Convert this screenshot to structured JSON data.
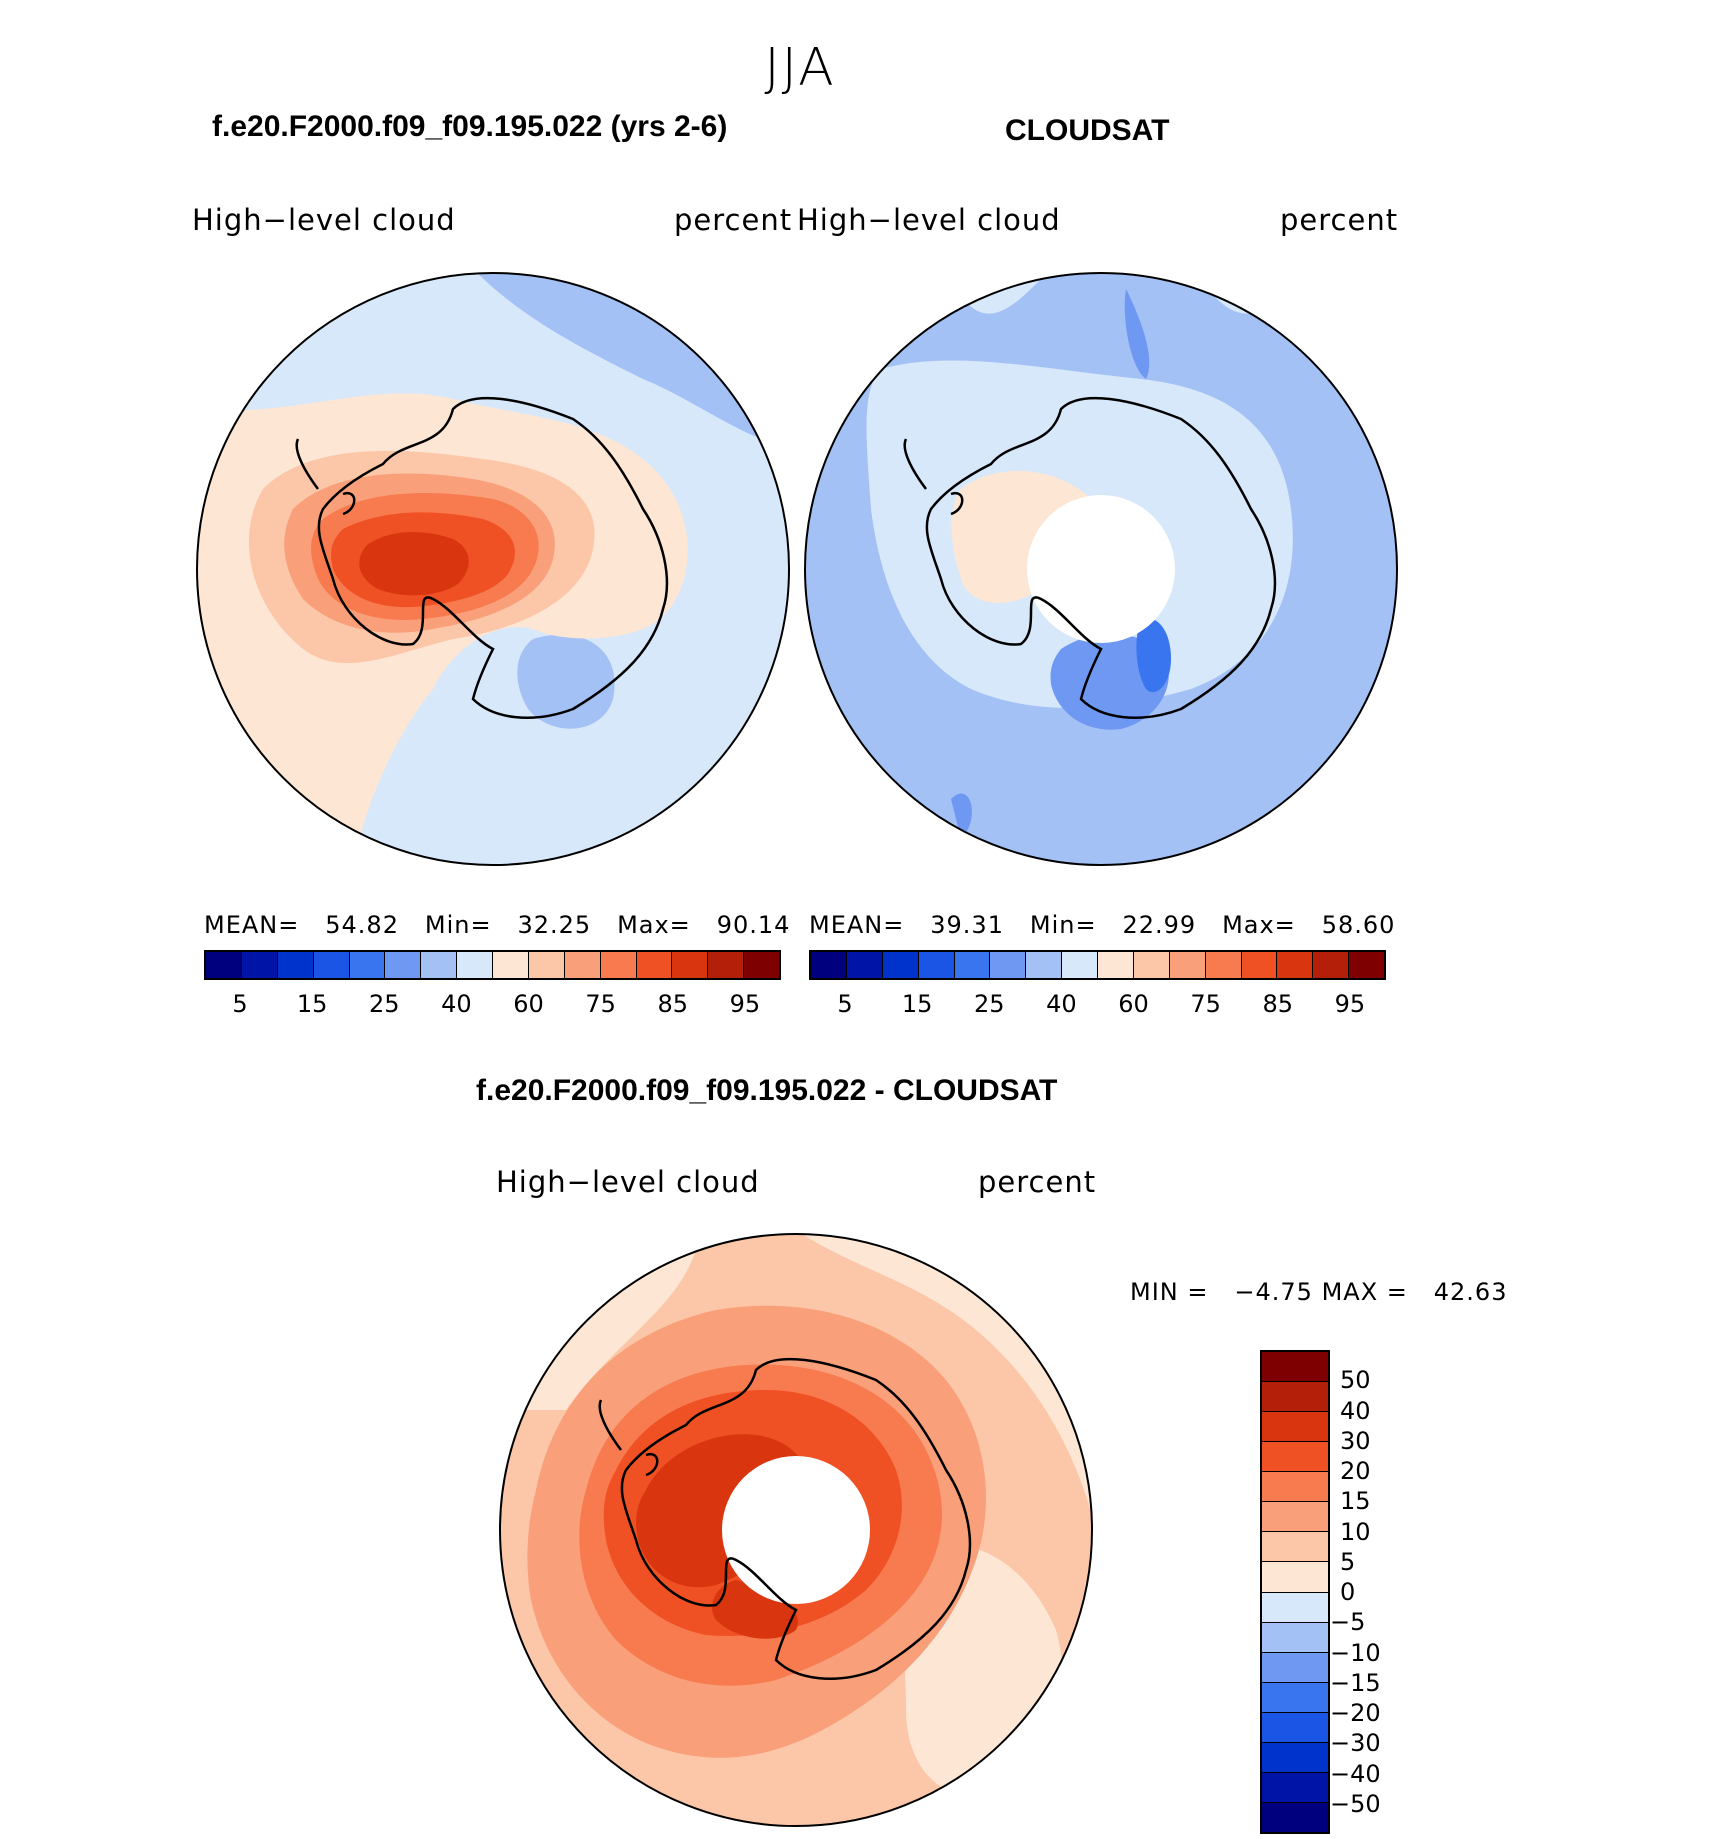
{
  "season": "JJA",
  "panels": {
    "model": {
      "title": "f.e20.F2000.f09_f09.195.022 (yrs 2-6)",
      "left_label": "High−level cloud",
      "right_label": "percent",
      "stats": {
        "mean_label": "MEAN=",
        "mean": "54.82",
        "min_label": "Min=",
        "min": "32.25",
        "max_label": "Max=",
        "max": "90.14"
      }
    },
    "obs": {
      "title": "CLOUDSAT",
      "left_label": "High−level cloud",
      "right_label": "percent",
      "stats": {
        "mean_label": "MEAN=",
        "mean": "39.31",
        "min_label": "Min=",
        "min": "22.99",
        "max_label": "Max=",
        "max": "58.60"
      }
    },
    "diff": {
      "title": "f.e20.F2000.f09_f09.195.022 - CLOUDSAT",
      "left_label": "High−level cloud",
      "right_label": "percent",
      "minmax": {
        "min_label": "MIN =",
        "min": "−4.75",
        "max_label": "MAX =",
        "max": "42.63"
      }
    }
  },
  "colorbar_abs": {
    "colors": [
      "#00007f",
      "#0015a8",
      "#0033cc",
      "#1a55e6",
      "#3a75f0",
      "#6e98f2",
      "#a3c1f5",
      "#d7e8fb",
      "#fde6d4",
      "#fcc7a8",
      "#f9a07b",
      "#f77b4f",
      "#ef5124",
      "#d9350f",
      "#b31f08",
      "#7f0000"
    ],
    "ticks": [
      "5",
      "15",
      "25",
      "40",
      "60",
      "75",
      "85",
      "95"
    ]
  },
  "colorbar_diff": {
    "colors": [
      "#7f0000",
      "#b31f08",
      "#d9350f",
      "#ef5124",
      "#f77b4f",
      "#f9a07b",
      "#fcc7a8",
      "#fde6d4",
      "#d7e8fb",
      "#a3c1f5",
      "#6e98f2",
      "#3a75f0",
      "#1a55e6",
      "#0033cc",
      "#0015a8",
      "#00007f"
    ],
    "ticks": [
      "50",
      "40",
      "30",
      "20",
      "15",
      "10",
      "5",
      "0",
      "−5",
      "−10",
      "−15",
      "−20",
      "−30",
      "−40",
      "−50"
    ]
  },
  "map_colors": {
    "bg_blue": "#d7e8fb",
    "light_blue": "#a3c1f5",
    "mid_blue": "#6e98f2",
    "blue": "#3a75f0",
    "peach": "#fde6d4",
    "salmon": "#fcc7a8",
    "orange": "#f9a07b",
    "orange2": "#f77b4f",
    "red": "#ef5124",
    "dark_red": "#d9350f",
    "white": "#ffffff",
    "coast": "#000000"
  }
}
